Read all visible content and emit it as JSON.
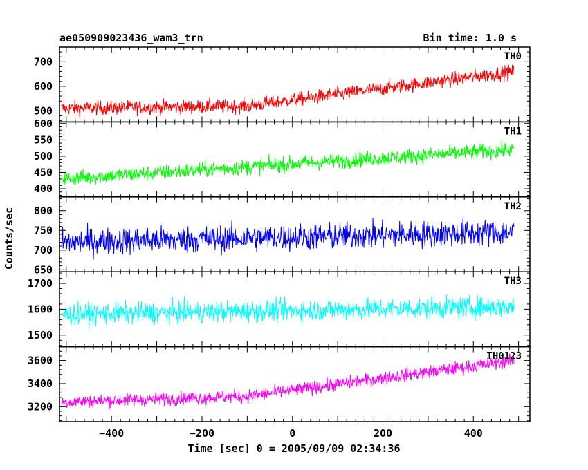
{
  "chart_data": {
    "type": "line",
    "title_left": "ae050909023436_wam3_trn",
    "title_right": "Bin time: 1.0 s",
    "xlabel": "Time [sec] 0 = 2005/09/09 02:34:36",
    "ylabel": "Counts/sec",
    "xlim": [
      -515,
      525
    ],
    "x_range": [
      -510,
      490
    ],
    "x_ticks": [
      -400,
      -200,
      0,
      200,
      400
    ],
    "panels": [
      {
        "name": "TH0",
        "color": "#ff0000",
        "ylim": [
          455,
          760
        ],
        "y_ticks": [
          500,
          600,
          700
        ],
        "trend": {
          "x": [
            -510,
            -100,
            490
          ],
          "y": [
            510,
            520,
            660
          ]
        },
        "noise_amplitude": 55
      },
      {
        "name": "TH1",
        "color": "#00ff00",
        "ylim": [
          375,
          605
        ],
        "y_ticks": [
          400,
          450,
          500,
          550,
          600
        ],
        "trend": {
          "x": [
            -510,
            490
          ],
          "y": [
            430,
            520
          ]
        },
        "noise_amplitude": 45
      },
      {
        "name": "TH2",
        "color": "#0000ff",
        "ylim": [
          645,
          835
        ],
        "y_ticks": [
          650,
          700,
          750,
          800
        ],
        "trend": {
          "x": [
            -510,
            490
          ],
          "y": [
            720,
            745
          ]
        },
        "noise_amplitude": 65
      },
      {
        "name": "TH3",
        "color": "#00ffff",
        "ylim": [
          1455,
          1745
        ],
        "y_ticks": [
          1500,
          1600,
          1700
        ],
        "trend": {
          "x": [
            -510,
            490
          ],
          "y": [
            1580,
            1610
          ]
        },
        "noise_amplitude": 80
      },
      {
        "name": "TH0123",
        "color": "#ff00ff",
        "ylim": [
          3070,
          3720
        ],
        "y_ticks": [
          3200,
          3400,
          3600
        ],
        "trend": {
          "x": [
            -510,
            -100,
            490
          ],
          "y": [
            3240,
            3290,
            3600
          ]
        },
        "noise_amplitude": 110
      }
    ]
  }
}
